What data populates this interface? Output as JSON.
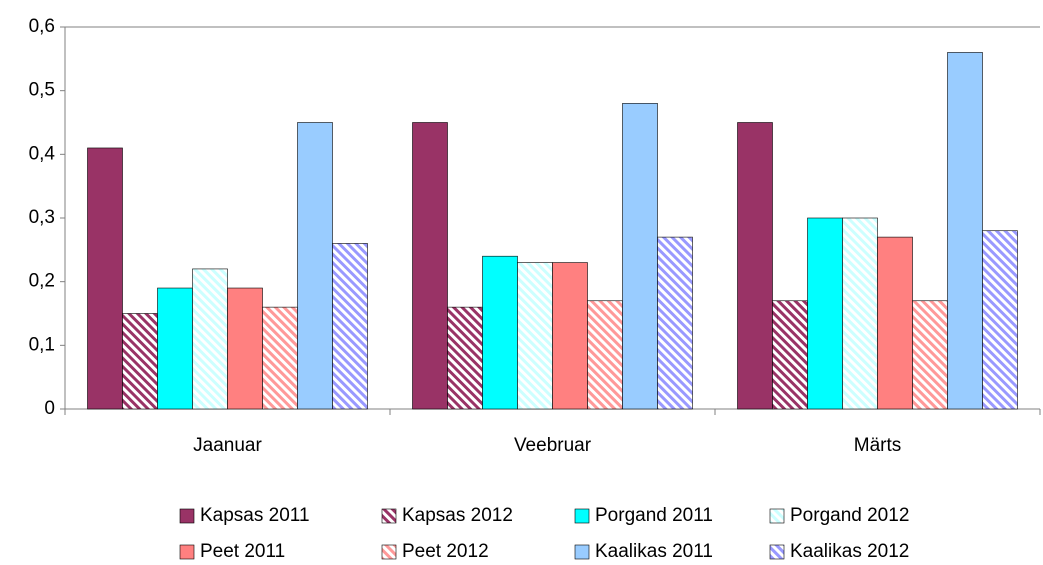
{
  "chart_data": {
    "type": "bar",
    "categories": [
      "Jaanuar",
      "Veebruar",
      "Märts"
    ],
    "series": [
      {
        "name": "Kapsas 2011",
        "color": "#993366",
        "hatch": false,
        "values": [
          0.41,
          0.45,
          0.45
        ]
      },
      {
        "name": "Kapsas 2012",
        "color": "#993366",
        "hatch": true,
        "values": [
          0.15,
          0.16,
          0.17
        ]
      },
      {
        "name": "Porgand 2011",
        "color": "#00ffff",
        "hatch": false,
        "values": [
          0.19,
          0.24,
          0.3
        ]
      },
      {
        "name": "Porgand 2012",
        "color": "#ccffff",
        "hatch": true,
        "values": [
          0.22,
          0.23,
          0.3
        ]
      },
      {
        "name": "Peet 2011",
        "color": "#ff8080",
        "hatch": false,
        "values": [
          0.19,
          0.23,
          0.27
        ]
      },
      {
        "name": "Peet 2012",
        "color": "#ff9999",
        "hatch": true,
        "values": [
          0.16,
          0.17,
          0.17
        ]
      },
      {
        "name": "Kaalikas 2011",
        "color": "#99ccff",
        "hatch": false,
        "values": [
          0.45,
          0.48,
          0.56
        ]
      },
      {
        "name": "Kaalikas 2012",
        "color": "#9999ff",
        "hatch": true,
        "values": [
          0.26,
          0.27,
          0.28
        ]
      }
    ],
    "ylim": [
      0,
      0.6
    ],
    "yticks": [
      0,
      {
        "value": 0.1,
        "label": "0,1"
      },
      {
        "value": 0.2,
        "label": "0,2"
      },
      {
        "value": 0.3,
        "label": "0,3"
      },
      {
        "value": 0.4,
        "label": "0,4"
      },
      {
        "value": 0.5,
        "label": "0,5"
      },
      {
        "value": 0.6,
        "label": "0,6"
      }
    ],
    "grid": false,
    "legend": "bottom"
  }
}
